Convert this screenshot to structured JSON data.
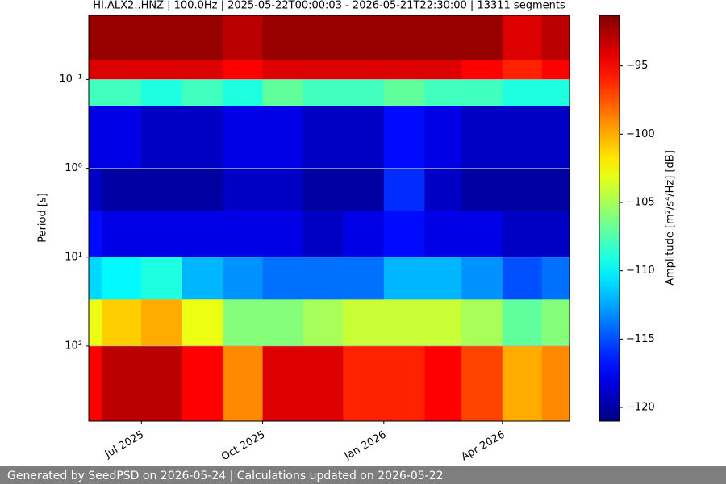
{
  "chart_data": {
    "type": "heatmap",
    "title": "HI.ALX2..HNZ | 100.0Hz | 2025-05-22T00:00:03 - 2026-05-21T22:30:00 | 13311 segments",
    "y_label": "Period [s]",
    "colorbar_label": "Amplitude [m²/s⁴/Hz] [dB]",
    "colormap": "jet",
    "grid": true,
    "y_scale": "log",
    "y_inverted": true,
    "xlim": [
      "2025-05-22T00:00:03",
      "2026-05-21T22:30:00"
    ],
    "x": [
      "2025-05-22T00:00:03",
      "2025-06",
      "2025-07",
      "2025-08",
      "2025-09",
      "2025-10",
      "2025-11",
      "2025-12",
      "2026-01",
      "2026-02",
      "2026-03",
      "2026-04",
      "2026-05",
      "2026-05-21T22:30:00"
    ],
    "xticks": [
      {
        "value": "2025-07",
        "label": "Jul 2025"
      },
      {
        "value": "2025-10",
        "label": "Oct 2025"
      },
      {
        "value": "2026-01",
        "label": "Jan 2026"
      },
      {
        "value": "2026-04",
        "label": "Apr 2026"
      }
    ],
    "ylim": [
      0.019,
      700
    ],
    "yticks": [
      {
        "value": 0.1,
        "label": "10⁻¹"
      },
      {
        "value": 1,
        "label": "10⁰"
      },
      {
        "value": 10,
        "label": "10¹"
      },
      {
        "value": 100,
        "label": "10²"
      }
    ],
    "y_edges": [
      0.019,
      0.06,
      0.1,
      0.2,
      1,
      3,
      10,
      30,
      100,
      700
    ],
    "z": [
      [
        -92,
        -92,
        -92,
        -92,
        -93,
        -92,
        -92,
        -92,
        -92,
        -92,
        -92,
        -94,
        -93
      ],
      [
        -94,
        -94,
        -94,
        -94,
        -95,
        -94,
        -94,
        -94,
        -94,
        -94,
        -95,
        -96,
        -95
      ],
      [
        -108,
        -108,
        -109,
        -108,
        -109,
        -107,
        -108,
        -108,
        -107,
        -108,
        -108,
        -109,
        -109
      ],
      [
        -118,
        -118,
        -119,
        -119,
        -118,
        -118,
        -119,
        -119,
        -117,
        -118,
        -119,
        -119,
        -119
      ],
      [
        -119,
        -120,
        -120,
        -120,
        -119,
        -119,
        -120,
        -120,
        -116,
        -119,
        -120,
        -120,
        -120
      ],
      [
        -117,
        -118,
        -118,
        -118,
        -118,
        -118,
        -119,
        -118,
        -117,
        -118,
        -118,
        -119,
        -119
      ],
      [
        -111,
        -110,
        -109,
        -112,
        -113,
        -114,
        -114,
        -114,
        -112,
        -112,
        -113,
        -115,
        -114
      ],
      [
        -103,
        -101,
        -100,
        -103,
        -106,
        -106,
        -105,
        -104,
        -104,
        -104,
        -105,
        -107,
        -106
      ],
      [
        -95,
        -93,
        -93,
        -95,
        -99,
        -94,
        -94,
        -96,
        -96,
        -95,
        -97,
        -100,
        -99
      ]
    ],
    "clim": [
      -121,
      -91.3
    ],
    "cticks": [
      {
        "value": -95,
        "label": "−95"
      },
      {
        "value": -100,
        "label": "−100"
      },
      {
        "value": -105,
        "label": "−105"
      },
      {
        "value": -110,
        "label": "−110"
      },
      {
        "value": -115,
        "label": "−115"
      },
      {
        "value": -120,
        "label": "−120"
      }
    ]
  },
  "footer": "Generated by SeedPSD on 2026-05-24 | Calculations updated on 2026-05-22"
}
